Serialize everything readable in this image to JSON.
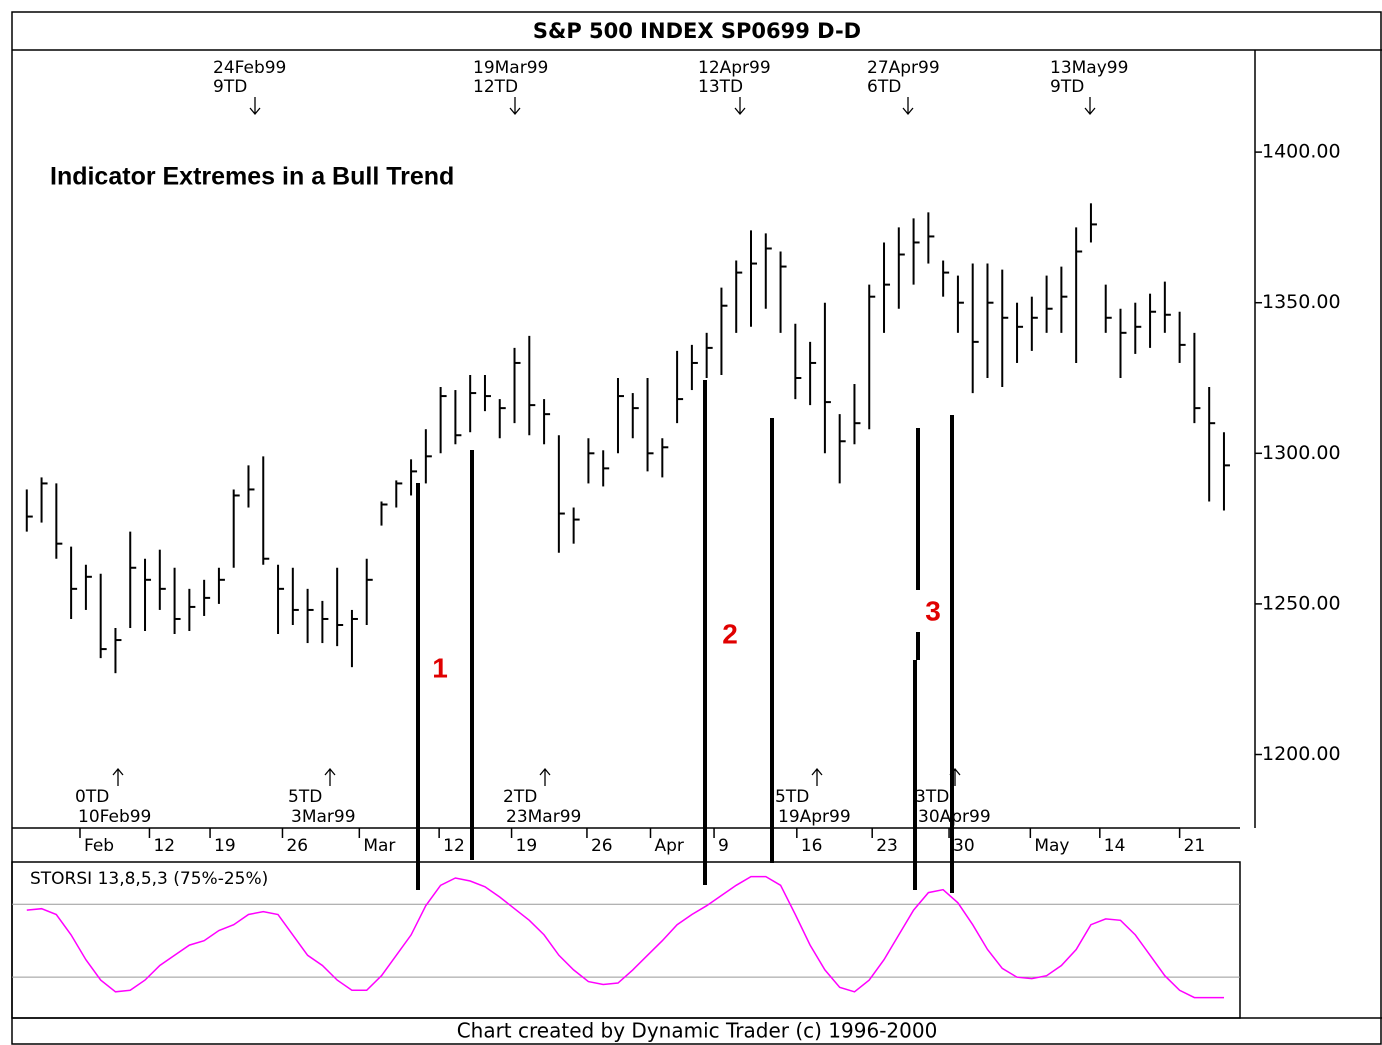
{
  "chart_data": [
    {
      "type": "ohlc",
      "title": "S&P 500 INDEX SP0699 D-D",
      "subtitle": "Indicator Extremes in a Bull Trend",
      "color": "#000000",
      "high": [
        1288,
        1292,
        1290,
        1269,
        1263,
        1260,
        1242,
        1274,
        1265,
        1268,
        1262,
        1255,
        1258,
        1262,
        1288,
        1296,
        1299,
        1263,
        1262,
        1255,
        1251,
        1262,
        1248,
        1265,
        1284,
        1291,
        1298,
        1308,
        1322,
        1321,
        1326,
        1326,
        1318,
        1335,
        1339,
        1318,
        1306,
        1282,
        1305,
        1301,
        1325,
        1320,
        1325,
        1305,
        1334,
        1336,
        1340,
        1355,
        1364,
        1374,
        1373,
        1367,
        1343,
        1337,
        1350,
        1313,
        1323,
        1356,
        1370,
        1375,
        1378,
        1380,
        1364,
        1359,
        1363,
        1363,
        1361,
        1350,
        1352,
        1359,
        1362,
        1375,
        1383,
        1356,
        1348,
        1350,
        1353,
        1357,
        1347,
        1340,
        1322,
        1307
      ],
      "low": [
        1274,
        1277,
        1265,
        1245,
        1248,
        1232,
        1227,
        1242,
        1241,
        1248,
        1240,
        1241,
        1246,
        1250,
        1262,
        1282,
        1263,
        1240,
        1243,
        1237,
        1237,
        1236,
        1229,
        1243,
        1276,
        1282,
        1286,
        1290,
        1300,
        1303,
        1307,
        1314,
        1305,
        1310,
        1306,
        1303,
        1267,
        1270,
        1290,
        1289,
        1300,
        1305,
        1294,
        1292,
        1310,
        1321,
        1325,
        1326,
        1340,
        1342,
        1348,
        1340,
        1318,
        1316,
        1300,
        1290,
        1303,
        1308,
        1340,
        1348,
        1356,
        1363,
        1352,
        1340,
        1320,
        1325,
        1322,
        1330,
        1334,
        1340,
        1340,
        1330,
        1370,
        1340,
        1325,
        1333,
        1335,
        1340,
        1330,
        1310,
        1284,
        1281
      ],
      "close": [
        1279,
        1290,
        1270,
        1255,
        1259,
        1235,
        1238,
        1262,
        1258,
        1255,
        1245,
        1249,
        1252,
        1258,
        1286,
        1288,
        1265,
        1255,
        1248,
        1248,
        1245,
        1243,
        1245,
        1258,
        1283,
        1290,
        1294,
        1299,
        1319,
        1306,
        1320,
        1319,
        1315,
        1330,
        1316,
        1313,
        1280,
        1278,
        1300,
        1295,
        1319,
        1315,
        1300,
        1302,
        1318,
        1330,
        1335,
        1349,
        1360,
        1363,
        1368,
        1362,
        1325,
        1330,
        1317,
        1304,
        1310,
        1352,
        1356,
        1366,
        1370,
        1372,
        1360,
        1350,
        1337,
        1350,
        1345,
        1342,
        1345,
        1348,
        1352,
        1367,
        1376,
        1345,
        1340,
        1342,
        1347,
        1346,
        1336,
        1315,
        1310,
        1296
      ],
      "xlim": [
        -1,
        83.1
      ],
      "xticks": [
        {
          "value": 3.6,
          "label": "Feb"
        },
        {
          "value": 8.3,
          "label": "12"
        },
        {
          "value": 12.4,
          "label": "19"
        },
        {
          "value": 17.3,
          "label": "26"
        },
        {
          "value": 22.5,
          "label": "Mar"
        },
        {
          "value": 27.9,
          "label": "12"
        },
        {
          "value": 32.8,
          "label": "19"
        },
        {
          "value": 37.9,
          "label": "26"
        },
        {
          "value": 42.2,
          "label": "Apr"
        },
        {
          "value": 46.5,
          "label": "9"
        },
        {
          "value": 52.1,
          "label": "16"
        },
        {
          "value": 57.2,
          "label": "23"
        },
        {
          "value": 62.4,
          "label": "30"
        },
        {
          "value": 67.9,
          "label": "May"
        },
        {
          "value": 72.6,
          "label": "14"
        },
        {
          "value": 78,
          "label": "21"
        }
      ],
      "ylim": [
        1175.6,
        1433.9
      ],
      "yticks": [
        {
          "value": 1200,
          "label": "1200.00"
        },
        {
          "value": 1250,
          "label": "1250.00"
        },
        {
          "value": 1300,
          "label": "1300.00"
        },
        {
          "value": 1350,
          "label": "1350.00"
        },
        {
          "value": 1400,
          "label": "1400.00"
        }
      ],
      "annotations_top": [
        {
          "date": "24Feb99",
          "td": "9TD"
        },
        {
          "date": "19Mar99",
          "td": "12TD"
        },
        {
          "date": "12Apr99",
          "td": "13TD"
        },
        {
          "date": "27Apr99",
          "td": "6TD"
        },
        {
          "date": "13May99",
          "td": "9TD"
        }
      ],
      "annotations_bottom": [
        {
          "date": "10Feb99",
          "td": "0TD"
        },
        {
          "date": "3Mar99",
          "td": "5TD"
        },
        {
          "date": "23Mar99",
          "td": "2TD"
        },
        {
          "date": "19Apr99",
          "td": "5TD"
        },
        {
          "date": "30Apr99",
          "td": "3TD"
        }
      ],
      "labels": [
        "1",
        "2",
        "3"
      ],
      "label_color": "#e00000",
      "footer": "Chart created by Dynamic Trader (c) 1996-2000"
    },
    {
      "type": "line",
      "title": "STORSI 13,8,5,3 (75%-25%)",
      "color": "#ff00ff",
      "values": [
        71,
        72,
        68,
        54,
        37,
        23,
        15,
        16,
        23,
        33,
        40,
        47,
        50,
        57,
        61,
        68,
        70,
        68,
        54,
        40,
        33,
        23,
        16,
        16,
        26,
        40,
        54,
        74,
        88,
        93,
        91,
        87,
        80,
        72,
        64,
        54,
        40,
        30,
        22,
        20,
        21,
        30,
        40,
        50,
        61,
        68,
        74,
        81,
        88,
        94,
        94,
        88,
        68,
        47,
        30,
        18,
        15,
        23,
        37,
        54,
        71,
        83,
        85,
        76,
        61,
        44,
        31,
        25,
        24,
        26,
        33,
        44,
        61,
        65,
        64,
        54,
        40,
        26,
        16,
        11,
        11,
        11
      ],
      "ylim": [
        -3,
        104
      ],
      "levels": [
        75,
        25
      ]
    }
  ]
}
